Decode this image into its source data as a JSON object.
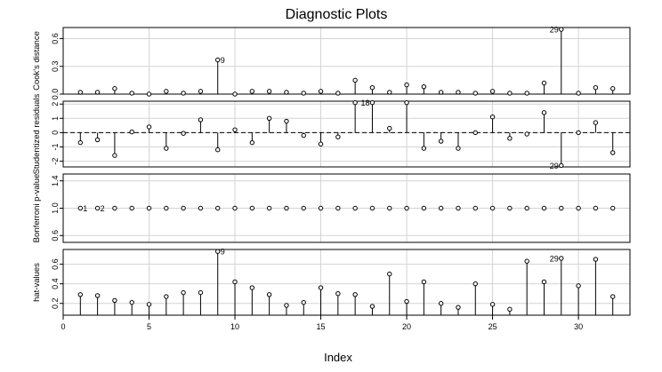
{
  "chart_data": {
    "type": "scatter",
    "title": "Diagnostic Plots",
    "xlabel": "Index",
    "xlim": [
      0,
      33
    ],
    "xticks": [
      0,
      5,
      10,
      15,
      20,
      25,
      30
    ],
    "x": [
      1,
      2,
      3,
      4,
      5,
      6,
      7,
      8,
      9,
      10,
      11,
      12,
      13,
      14,
      15,
      16,
      17,
      18,
      19,
      20,
      21,
      22,
      23,
      24,
      25,
      26,
      27,
      28,
      29,
      30,
      31,
      32
    ],
    "panels": [
      {
        "ylabel": "Cook's distance",
        "ylim": [
          0,
          0.72
        ],
        "yticks": [
          0.0,
          0.3,
          0.6
        ],
        "ytick_labels": [
          "0.0",
          "0.3",
          "0.6"
        ],
        "values": [
          0.02,
          0.02,
          0.06,
          0.01,
          0.0,
          0.03,
          0.01,
          0.03,
          0.37,
          0.0,
          0.03,
          0.03,
          0.02,
          0.01,
          0.03,
          0.01,
          0.15,
          0.07,
          0.02,
          0.1,
          0.08,
          0.02,
          0.02,
          0.01,
          0.03,
          0.01,
          0.01,
          0.12,
          0.7,
          0.01,
          0.07,
          0.06
        ],
        "labels": [
          {
            "index": 9,
            "text": "9",
            "side": "right"
          },
          {
            "index": 29,
            "text": "29",
            "side": "left"
          }
        ]
      },
      {
        "ylabel": "Studentized residuals",
        "ylim": [
          -2.4,
          2.2
        ],
        "yticks": [
          -2,
          -1,
          0,
          1,
          2
        ],
        "ytick_labels": [
          "-2",
          "-1",
          "0",
          "1",
          "2"
        ],
        "refline": 0,
        "values": [
          -0.7,
          -0.5,
          -1.6,
          0.05,
          0.4,
          -1.1,
          -0.05,
          0.9,
          -1.2,
          0.2,
          -0.7,
          1.0,
          0.8,
          -0.2,
          -0.8,
          -0.3,
          2.1,
          2.1,
          0.3,
          2.1,
          -1.1,
          -0.6,
          -1.1,
          0.0,
          1.1,
          -0.4,
          -0.1,
          1.4,
          -2.3,
          0.0,
          0.7,
          -1.4
        ],
        "labels": [
          {
            "index": 18,
            "text": "18",
            "side": "left"
          },
          {
            "index": 29,
            "text": "29",
            "side": "left"
          }
        ]
      },
      {
        "ylabel": "Bonferroni p-value",
        "ylim": [
          0.5,
          1.5
        ],
        "yticks": [
          0.6,
          1.0,
          1.4
        ],
        "ytick_labels": [
          "0.6",
          "1.0",
          "1.4"
        ],
        "stems": false,
        "values": [
          1,
          1,
          1,
          1,
          1,
          1,
          1,
          1,
          1,
          1,
          1,
          1,
          1,
          1,
          1,
          1,
          1,
          1,
          1,
          1,
          1,
          1,
          1,
          1,
          1,
          1,
          1,
          1,
          1,
          1,
          1,
          1
        ],
        "labels": [
          {
            "index": 1,
            "text": "1",
            "side": "right"
          },
          {
            "index": 2,
            "text": "2",
            "side": "right"
          }
        ]
      },
      {
        "ylabel": "hat-values",
        "ylim": [
          0.08,
          0.75
        ],
        "yticks": [
          0.2,
          0.4,
          0.6
        ],
        "ytick_labels": [
          "0.2",
          "0.4",
          "0.6"
        ],
        "values": [
          0.29,
          0.28,
          0.23,
          0.21,
          0.19,
          0.27,
          0.31,
          0.31,
          0.73,
          0.42,
          0.36,
          0.29,
          0.18,
          0.21,
          0.36,
          0.3,
          0.29,
          0.17,
          0.5,
          0.22,
          0.42,
          0.2,
          0.16,
          0.4,
          0.19,
          0.14,
          0.63,
          0.42,
          0.66,
          0.38,
          0.65,
          0.27
        ],
        "labels": [
          {
            "index": 9,
            "text": "9",
            "side": "right"
          },
          {
            "index": 29,
            "text": "29",
            "side": "left"
          }
        ]
      }
    ]
  }
}
